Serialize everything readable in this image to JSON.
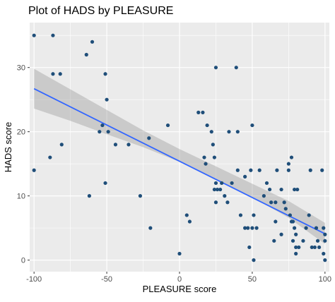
{
  "chart_data": {
    "type": "scatter",
    "title": "Plot of HADS by PLEASURE",
    "xlabel": "PLEASURE score",
    "ylabel": "HADS score",
    "xlim": [
      -103,
      103
    ],
    "ylim": [
      -1.8,
      37
    ],
    "x_ticks": [
      -100,
      -50,
      0,
      50,
      100
    ],
    "y_ticks": [
      0,
      10,
      20,
      30
    ],
    "x_tick_labels": [
      "-100",
      "-50",
      "0",
      "50",
      "100"
    ],
    "y_tick_labels": [
      "0",
      "10",
      "20",
      "30"
    ],
    "grid": true,
    "background": "#ebebeb",
    "point_color": "#1f4e79",
    "fit_line": {
      "x": [
        -100,
        100
      ],
      "y": [
        26.7,
        4.1
      ],
      "color": "#3366ff"
    },
    "confidence_band": {
      "x": [
        -100,
        -75,
        -50,
        -25,
        0,
        25,
        50,
        75,
        100
      ],
      "lower": [
        23.6,
        21.7,
        19.6,
        17.6,
        15.3,
        12.6,
        9.8,
        6.6,
        2.5
      ],
      "upper": [
        29.8,
        26.6,
        23.4,
        20.2,
        17.3,
        14.6,
        11.9,
        9.2,
        5.8
      ],
      "color": "#999999"
    },
    "points": [
      {
        "x": -100,
        "y": 35
      },
      {
        "x": -100,
        "y": 14
      },
      {
        "x": -87,
        "y": 35
      },
      {
        "x": -87,
        "y": 29
      },
      {
        "x": -82,
        "y": 29
      },
      {
        "x": -89,
        "y": 16
      },
      {
        "x": -81,
        "y": 18
      },
      {
        "x": -60,
        "y": 34
      },
      {
        "x": -64,
        "y": 32
      },
      {
        "x": -51,
        "y": 29
      },
      {
        "x": -50,
        "y": 25
      },
      {
        "x": -53,
        "y": 21
      },
      {
        "x": -55,
        "y": 20
      },
      {
        "x": -49,
        "y": 20
      },
      {
        "x": -44,
        "y": 18
      },
      {
        "x": -35,
        "y": 18
      },
      {
        "x": -51,
        "y": 12
      },
      {
        "x": -62,
        "y": 10
      },
      {
        "x": -21,
        "y": 19
      },
      {
        "x": -27,
        "y": 10
      },
      {
        "x": -20,
        "y": 5
      },
      {
        "x": -8,
        "y": 21
      },
      {
        "x": 0,
        "y": 1
      },
      {
        "x": 5,
        "y": 7
      },
      {
        "x": 7,
        "y": 6
      },
      {
        "x": 13,
        "y": 23
      },
      {
        "x": 16,
        "y": 23
      },
      {
        "x": 19,
        "y": 21
      },
      {
        "x": 17,
        "y": 16
      },
      {
        "x": 18,
        "y": 15
      },
      {
        "x": 22,
        "y": 20
      },
      {
        "x": 23,
        "y": 18
      },
      {
        "x": 24,
        "y": 16
      },
      {
        "x": 25,
        "y": 12
      },
      {
        "x": 24,
        "y": 11
      },
      {
        "x": 26,
        "y": 11
      },
      {
        "x": 28,
        "y": 11
      },
      {
        "x": 29,
        "y": 12
      },
      {
        "x": 31,
        "y": 10
      },
      {
        "x": 25,
        "y": 9
      },
      {
        "x": 25,
        "y": 30
      },
      {
        "x": 39,
        "y": 30
      },
      {
        "x": 34,
        "y": 20
      },
      {
        "x": 40,
        "y": 20
      },
      {
        "x": 36,
        "y": 12
      },
      {
        "x": 33,
        "y": 9
      },
      {
        "x": 40,
        "y": 14
      },
      {
        "x": 45,
        "y": 13
      },
      {
        "x": 49,
        "y": 14
      },
      {
        "x": 50,
        "y": 21
      },
      {
        "x": 42,
        "y": 7
      },
      {
        "x": 45,
        "y": 5
      },
      {
        "x": 47,
        "y": 5
      },
      {
        "x": 51,
        "y": 7
      },
      {
        "x": 50,
        "y": 5
      },
      {
        "x": 53,
        "y": 5
      },
      {
        "x": 48,
        "y": 2
      },
      {
        "x": 51,
        "y": 0
      },
      {
        "x": 55,
        "y": 14
      },
      {
        "x": 58,
        "y": 10
      },
      {
        "x": 60,
        "y": 12
      },
      {
        "x": 62,
        "y": 11
      },
      {
        "x": 63,
        "y": 9
      },
      {
        "x": 66,
        "y": 9
      },
      {
        "x": 65,
        "y": 3
      },
      {
        "x": 66,
        "y": 6
      },
      {
        "x": 67,
        "y": 14
      },
      {
        "x": 70,
        "y": 4
      },
      {
        "x": 70,
        "y": 11
      },
      {
        "x": 72,
        "y": 9
      },
      {
        "x": 73,
        "y": 8
      },
      {
        "x": 75,
        "y": 14
      },
      {
        "x": 75,
        "y": 15
      },
      {
        "x": 77,
        "y": 16
      },
      {
        "x": 76,
        "y": 7
      },
      {
        "x": 77,
        "y": 6
      },
      {
        "x": 78,
        "y": 6
      },
      {
        "x": 79,
        "y": 5
      },
      {
        "x": 80,
        "y": 4
      },
      {
        "x": 78,
        "y": 3
      },
      {
        "x": 80,
        "y": 2
      },
      {
        "x": 82,
        "y": 2
      },
      {
        "x": 79,
        "y": 11
      },
      {
        "x": 81,
        "y": 11
      },
      {
        "x": 80,
        "y": 1
      },
      {
        "x": 85,
        "y": 3
      },
      {
        "x": 87,
        "y": 5
      },
      {
        "x": 89,
        "y": 7
      },
      {
        "x": 90,
        "y": 14
      },
      {
        "x": 91,
        "y": 2
      },
      {
        "x": 93,
        "y": 2
      },
      {
        "x": 95,
        "y": 3
      },
      {
        "x": 98,
        "y": 14
      },
      {
        "x": 99,
        "y": 5
      },
      {
        "x": 100,
        "y": 4
      },
      {
        "x": 100,
        "y": 3
      },
      {
        "x": 99,
        "y": 1
      },
      {
        "x": 100,
        "y": 0
      },
      {
        "x": 96,
        "y": 2
      },
      {
        "x": 94,
        "y": 5
      }
    ]
  }
}
